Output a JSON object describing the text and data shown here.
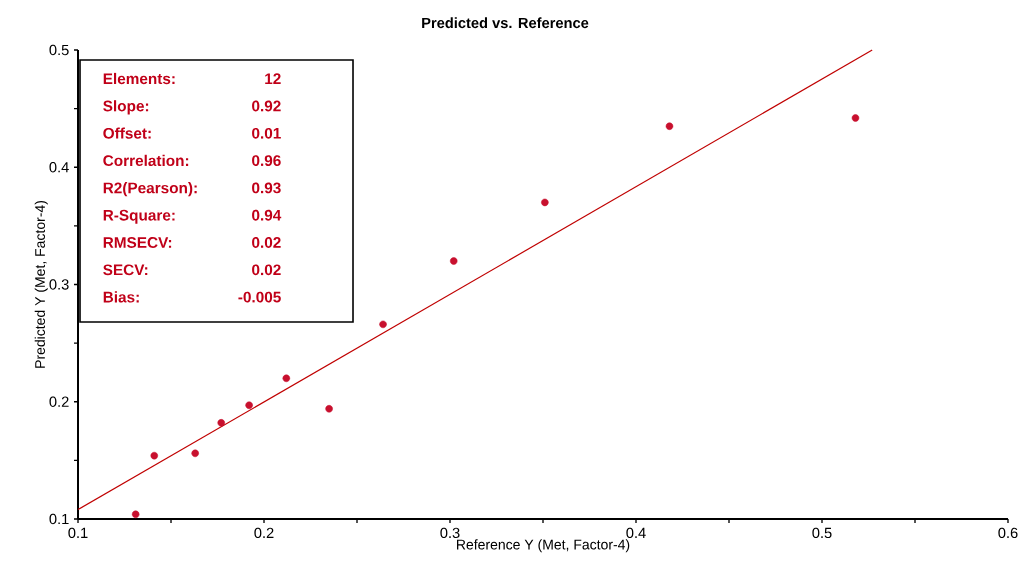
{
  "chart_data": {
    "type": "scatter",
    "title": "Predicted vs. Reference",
    "xlabel": "Reference Y (Met, Factor-4)",
    "ylabel": "Predicted Y (Met, Factor-4)",
    "xlim": [
      0.1,
      0.6
    ],
    "ylim": [
      0.1,
      0.5
    ],
    "xticks": [
      0.1,
      {
        "value": 0.15,
        "label": null
      },
      0.2,
      {
        "value": 0.25,
        "label": null
      },
      0.3,
      {
        "value": 0.35,
        "label": null
      },
      0.4,
      {
        "value": 0.45,
        "label": null
      },
      0.5,
      {
        "value": 0.55,
        "label": null
      },
      0.6
    ],
    "yticks": [
      0.1,
      {
        "value": 0.15,
        "label": null
      },
      0.2,
      {
        "value": 0.25,
        "label": null
      },
      0.3,
      {
        "value": 0.35,
        "label": null
      },
      0.4,
      {
        "value": 0.45,
        "label": null
      },
      0.5
    ],
    "grid": false,
    "series": [
      {
        "marker": "circle",
        "color": "#c8102e",
        "x": [
          0.131,
          0.141,
          0.163,
          0.177,
          0.192,
          0.212,
          0.235,
          0.264,
          0.302,
          0.351,
          0.418,
          0.518
        ],
        "values": [
          0.104,
          0.154,
          0.156,
          0.182,
          0.197,
          0.22,
          0.194,
          0.266,
          0.32,
          0.37,
          0.435,
          0.442
        ]
      },
      {
        "type": "line",
        "marker": "none",
        "color": "#c00000",
        "x": [
          0.1,
          0.527
        ],
        "values": [
          0.108,
          0.5
        ]
      }
    ],
    "annotations": [
      "Elements:",
      "12",
      "Slope:",
      "0.92",
      "Offset:",
      "0.01",
      "Correlation:",
      "0.96",
      "R2(Pearson):",
      "0.93",
      "R-Square:",
      "0.94",
      "RMSECV:",
      "0.02",
      "SECV:",
      "0.02",
      "Bias:",
      "-0.005"
    ]
  }
}
